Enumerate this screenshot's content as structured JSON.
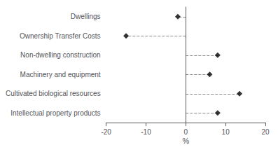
{
  "chart_data": {
    "type": "lollipop",
    "orientation": "horizontal",
    "categories": [
      "Dwellings",
      "Ownership Transfer Costs",
      "Non-dwelling construction",
      "Machinery and equipment",
      "Cultivated biological resources",
      "Intellectual property products"
    ],
    "values": [
      -2.0,
      -15.0,
      8.0,
      6.0,
      13.5,
      8.0
    ],
    "xlabel": "%",
    "xlim": [
      -20,
      20
    ],
    "xticks": [
      -20,
      -10,
      0,
      10,
      20
    ],
    "marker": "diamond",
    "line_style": "dashed",
    "color": "#000000",
    "grid": false
  }
}
